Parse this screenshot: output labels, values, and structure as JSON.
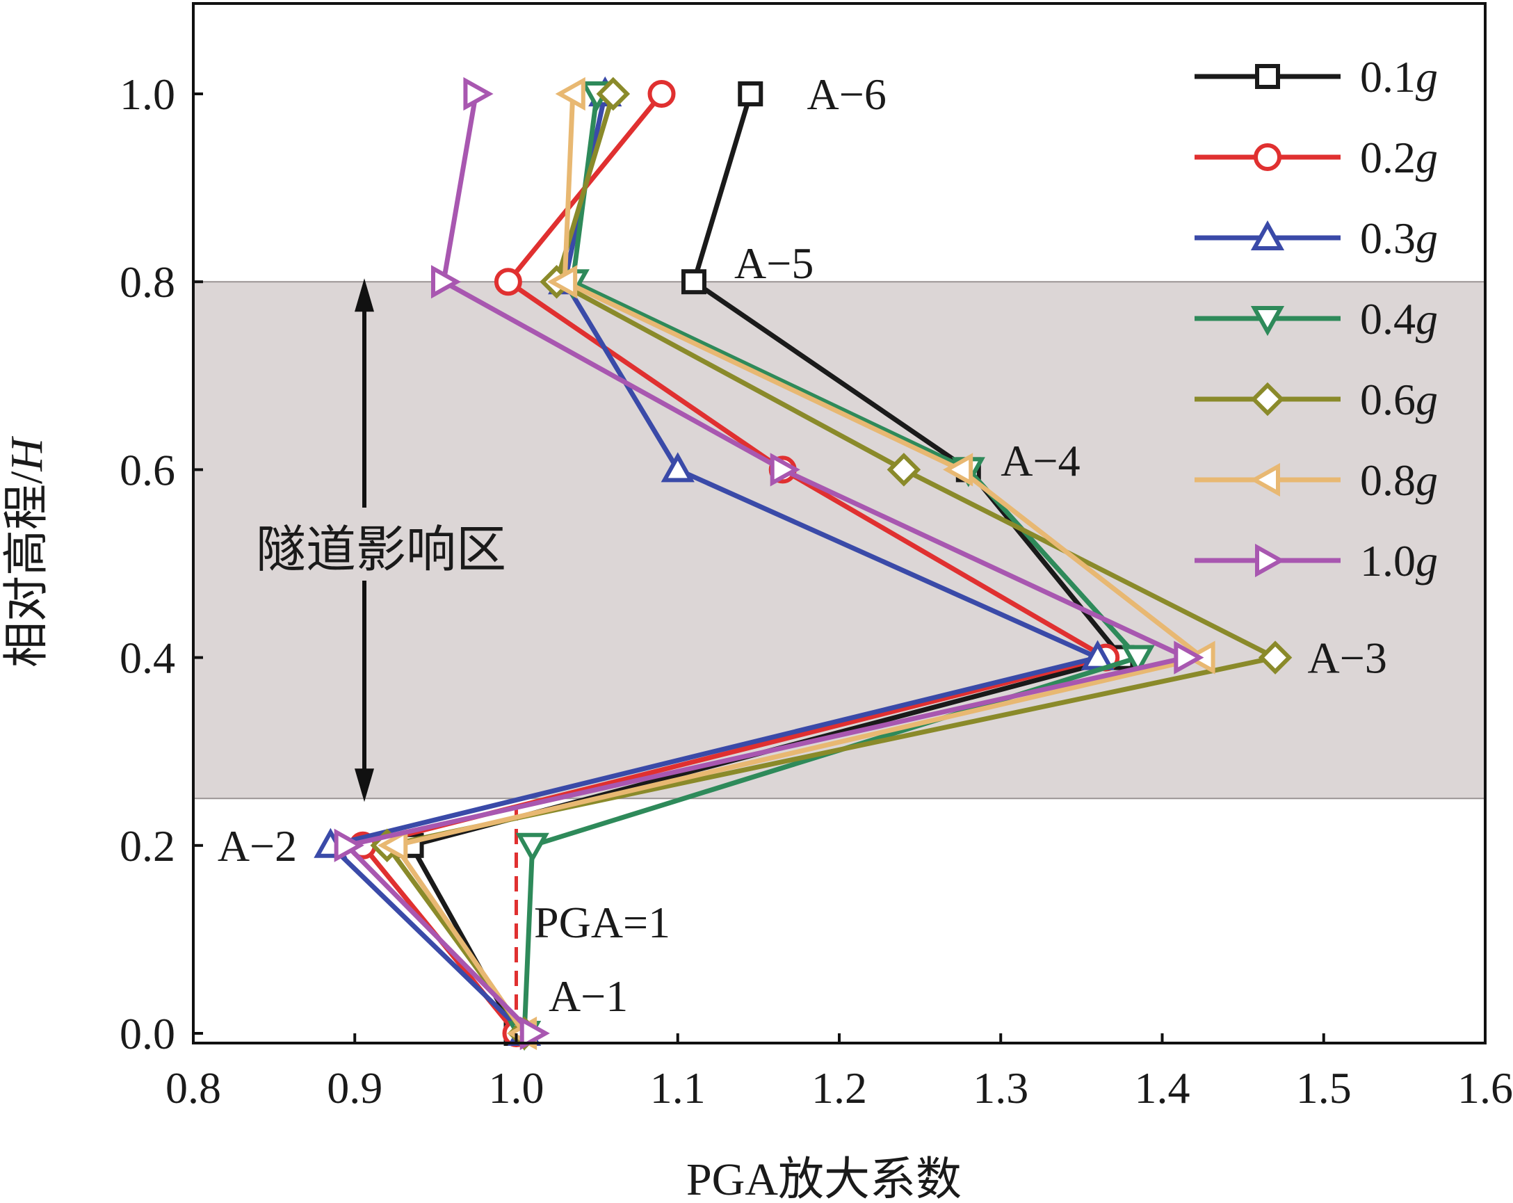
{
  "chart_data": {
    "type": "line",
    "title": "",
    "xlabel": "PGA放大系数",
    "ylabel_main": "相对高程/",
    "ylabel_italic": "H",
    "xlim": [
      0.8,
      1.6
    ],
    "ylim": [
      0.0,
      1.1
    ],
    "xticks": [
      0.8,
      0.9,
      1.0,
      1.1,
      1.2,
      1.3,
      1.4,
      1.5,
      1.6
    ],
    "xtick_labels": [
      "0.8",
      "0.9",
      "1.0",
      "1.1",
      "1.2",
      "1.3",
      "1.4",
      "1.5",
      "1.6"
    ],
    "yticks": [
      0.0,
      0.2,
      0.4,
      0.6,
      0.8,
      1.0
    ],
    "ytick_labels": [
      "0.0",
      "0.2",
      "0.4",
      "0.6",
      "0.8",
      "1.0"
    ],
    "grid": false,
    "legend_position": "top-right",
    "y": [
      0.0,
      0.2,
      0.4,
      0.6,
      0.8,
      1.0
    ],
    "series": [
      {
        "name": "0.1",
        "unit": "g",
        "color": "#1a1a1a",
        "marker": "square",
        "x": [
          1.0,
          0.935,
          1.375,
          1.28,
          1.11,
          1.145
        ]
      },
      {
        "name": "0.2",
        "unit": "g",
        "color": "#e03030",
        "marker": "circle",
        "x": [
          1.0,
          0.905,
          1.365,
          1.165,
          0.995,
          1.09
        ]
      },
      {
        "name": "0.3",
        "unit": "g",
        "color": "#3a4aa8",
        "marker": "triangle-up",
        "x": [
          1.005,
          0.885,
          1.36,
          1.1,
          1.03,
          1.055
        ]
      },
      {
        "name": "0.4",
        "unit": "g",
        "color": "#2e8a5a",
        "marker": "triangle-down",
        "x": [
          1.005,
          1.01,
          1.385,
          1.28,
          1.035,
          1.05
        ]
      },
      {
        "name": "0.6",
        "unit": "g",
        "color": "#8a8a2a",
        "marker": "diamond",
        "x": [
          1.005,
          0.92,
          1.47,
          1.24,
          1.025,
          1.06
        ]
      },
      {
        "name": "0.8",
        "unit": "g",
        "color": "#e8b872",
        "marker": "triangle-left",
        "x": [
          1.005,
          0.925,
          1.425,
          1.275,
          1.03,
          1.035
        ]
      },
      {
        "name": "1.0",
        "unit": "g",
        "color": "#a857b0",
        "marker": "triangle-right",
        "x": [
          1.01,
          0.895,
          1.415,
          1.165,
          0.955,
          0.975
        ]
      }
    ],
    "shaded_region": {
      "y_from": 0.25,
      "y_to": 0.8,
      "color": "#dcd6d6",
      "label": "隧道影响区"
    },
    "reference_line": {
      "x": 1.0,
      "y_from": 0.0,
      "y_to": 0.24,
      "color": "#e03030",
      "label": "PGA=1"
    },
    "point_labels": [
      {
        "text": "A−1",
        "x": 1.02,
        "y": 0.04
      },
      {
        "text": "A−2",
        "x": 0.815,
        "y": 0.2
      },
      {
        "text": "A−3",
        "x": 1.49,
        "y": 0.4
      },
      {
        "text": "A−4",
        "x": 1.3,
        "y": 0.61
      },
      {
        "text": "A−5",
        "x": 1.135,
        "y": 0.82
      },
      {
        "text": "A−6",
        "x": 1.18,
        "y": 1.0
      }
    ]
  }
}
